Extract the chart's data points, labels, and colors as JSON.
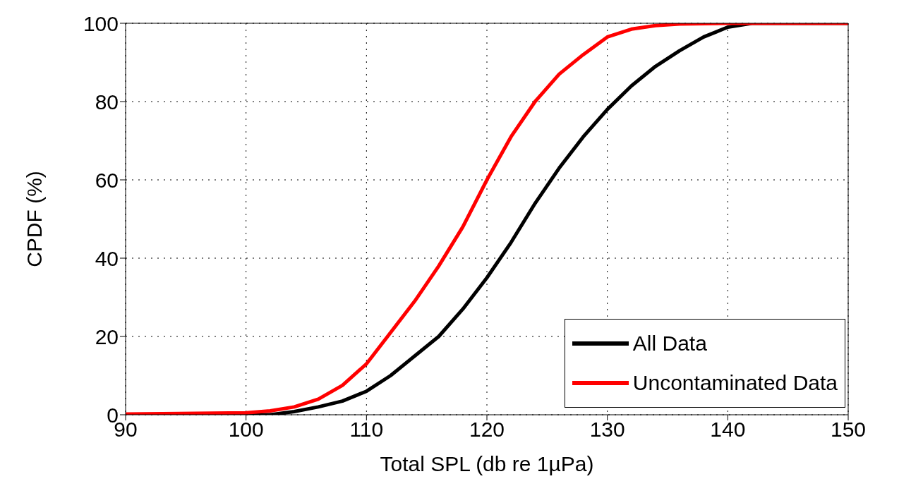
{
  "chart_data": {
    "type": "line",
    "xlabel": "Total SPL (db re 1µPa)",
    "ylabel": "CPDF (%)",
    "xlim": [
      90,
      150
    ],
    "xticks": [
      90,
      100,
      110,
      120,
      130,
      140,
      150
    ],
    "ylim": [
      0,
      100
    ],
    "yticks": [
      0,
      20,
      40,
      60,
      80,
      100
    ],
    "grid": true,
    "legend": "bottom right",
    "line_style": "solid",
    "marker": "none",
    "series": [
      {
        "name": "All Data",
        "color": "#000000",
        "x": [
          90,
          100,
          102,
          104,
          106,
          108,
          110,
          112,
          114,
          116,
          118,
          120,
          122,
          124,
          126,
          128,
          130,
          132,
          134,
          136,
          138,
          140,
          142,
          150
        ],
        "values": [
          0,
          0,
          0,
          0.8,
          2,
          3.5,
          6,
          10,
          15,
          20,
          27,
          35,
          44,
          54,
          63,
          71,
          78,
          84,
          89,
          93,
          96.5,
          99,
          100,
          100
        ]
      },
      {
        "name": "Uncontaminated Data",
        "color": "#ff0000",
        "x": [
          90,
          100,
          102,
          104,
          106,
          108,
          110,
          112,
          114,
          116,
          118,
          120,
          122,
          124,
          126,
          128,
          130,
          132,
          134,
          136,
          140,
          150
        ],
        "values": [
          0.2,
          0.5,
          1,
          2,
          4,
          7.5,
          13,
          21,
          29,
          38,
          48,
          60,
          71,
          80,
          87,
          92,
          96.5,
          98.5,
          99.4,
          99.8,
          100,
          100
        ]
      }
    ]
  }
}
